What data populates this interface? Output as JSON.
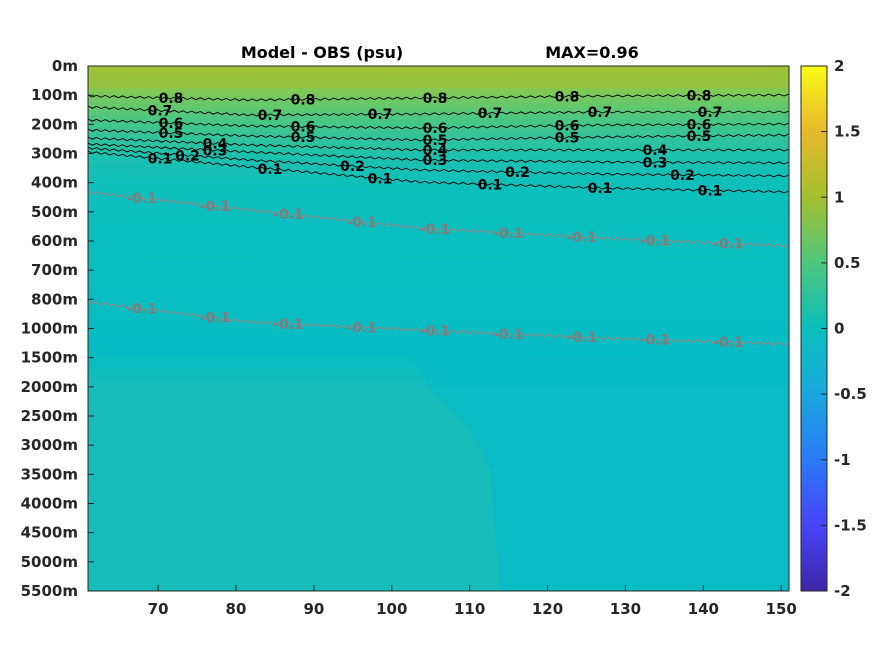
{
  "chart_data": {
    "type": "heatmap",
    "title": "Model - OBS (psu)",
    "max_label": "MAX=0.96",
    "xlabel": "",
    "ylabel": "",
    "xlim": [
      61,
      151
    ],
    "x_ticks": [
      70,
      80,
      90,
      100,
      110,
      120,
      130,
      140,
      150
    ],
    "y_ticks": [
      "0m",
      "100m",
      "200m",
      "300m",
      "400m",
      "500m",
      "600m",
      "700m",
      "800m",
      "1000m",
      "1500m",
      "2000m",
      "2500m",
      "3000m",
      "3500m",
      "4000m",
      "4500m",
      "5000m",
      "5500m"
    ],
    "colorbar": {
      "min": -2,
      "max": 2,
      "ticks": [
        "2",
        "1.5",
        "1",
        "0.5",
        "0",
        "-0.5",
        "-1",
        "-1.5",
        "-2"
      ],
      "colormap": [
        "#3e26a8",
        "#4743f8",
        "#2b7af6",
        "#1aa7dd",
        "#0abfbc",
        "#4fc67e",
        "#a4c02f",
        "#e7b92d",
        "#f9fb15"
      ]
    },
    "contours": [
      {
        "level": 0.8,
        "color": "#000000",
        "labels": [
          "0.8",
          "0.8",
          "0.8",
          "0.8",
          "0.8"
        ]
      },
      {
        "level": 0.7,
        "color": "#000000",
        "labels": [
          "0.7",
          "0.7",
          "0.7",
          "0.7",
          "0.7",
          "0.7"
        ]
      },
      {
        "level": 0.6,
        "color": "#000000",
        "labels": [
          "0.6",
          "0.6",
          "0.6",
          "0.6",
          "0.6"
        ]
      },
      {
        "level": 0.5,
        "color": "#000000",
        "labels": [
          "0.5",
          "0.5",
          "0.5",
          "0.5",
          "0.5"
        ]
      },
      {
        "level": 0.4,
        "color": "#000000",
        "labels": [
          "0.4",
          "0.4",
          "0.4"
        ]
      },
      {
        "level": 0.3,
        "color": "#000000",
        "labels": [
          "0.3",
          "0.3",
          "0.3"
        ]
      },
      {
        "level": 0.2,
        "color": "#000000",
        "labels": [
          "0.2",
          "0.2",
          "0.2",
          "0.2"
        ]
      },
      {
        "level": 0.1,
        "color": "#000000",
        "labels": [
          "0.1",
          "0.1",
          "0.1",
          "0.1",
          "0.1",
          "0.1"
        ]
      },
      {
        "level": -0.1,
        "color": "#8a8a8a",
        "labels": [
          "-0.1",
          "-0.1",
          "-0.1",
          "-0.1",
          "-0.1",
          "-0.1",
          "-0.1",
          "-0.1",
          "-0.1"
        ]
      },
      {
        "level": -0.1,
        "color": "#8a8a8a",
        "labels": [
          "-0.1",
          "-0.1",
          "-0.1",
          "-0.1",
          "-0.1",
          "-0.1",
          "-0.1",
          "-0.1",
          "-0.1"
        ]
      }
    ]
  }
}
